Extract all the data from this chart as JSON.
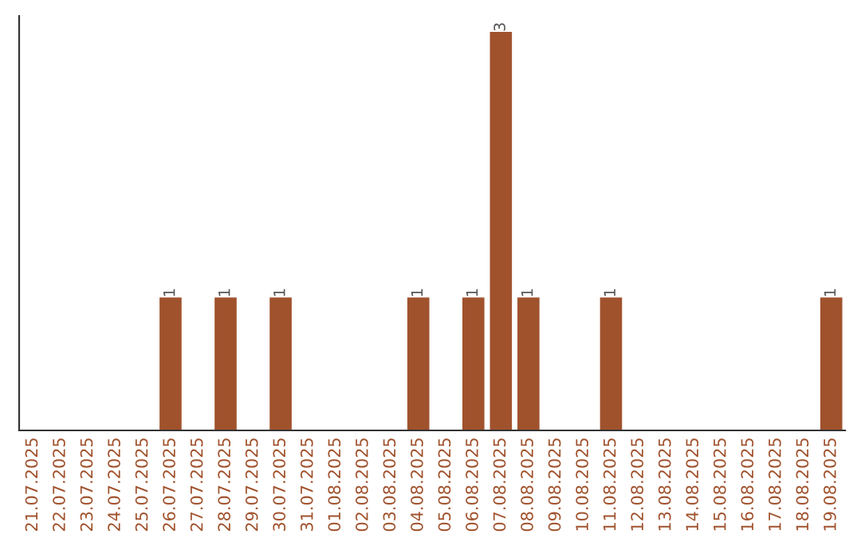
{
  "chart_data": {
    "type": "bar",
    "categories": [
      "21.07.2025",
      "22.07.2025",
      "23.07.2025",
      "24.07.2025",
      "25.07.2025",
      "26.07.2025",
      "27.07.2025",
      "28.07.2025",
      "29.07.2025",
      "30.07.2025",
      "31.07.2025",
      "01.08.2025",
      "02.08.2025",
      "03.08.2025",
      "04.08.2025",
      "05.08.2025",
      "06.08.2025",
      "07.08.2025",
      "08.08.2025",
      "09.08.2025",
      "10.08.2025",
      "11.08.2025",
      "12.08.2025",
      "13.08.2025",
      "14.08.2025",
      "15.08.2025",
      "16.08.2025",
      "17.08.2025",
      "18.08.2025",
      "19.08.2025"
    ],
    "values": [
      0,
      0,
      0,
      0,
      0,
      1,
      0,
      1,
      0,
      1,
      0,
      0,
      0,
      0,
      1,
      0,
      1,
      3,
      1,
      0,
      0,
      1,
      0,
      0,
      0,
      0,
      0,
      0,
      0,
      1
    ],
    "value_labels": [
      null,
      null,
      null,
      null,
      null,
      "1",
      null,
      "1",
      null,
      "1",
      null,
      null,
      null,
      null,
      "1",
      null,
      "1",
      "3",
      "1",
      null,
      null,
      "1",
      null,
      null,
      null,
      null,
      null,
      null,
      null,
      "1"
    ],
    "color": "#a0522d",
    "tick_labels": "x",
    "grid": false,
    "legend": false
  }
}
